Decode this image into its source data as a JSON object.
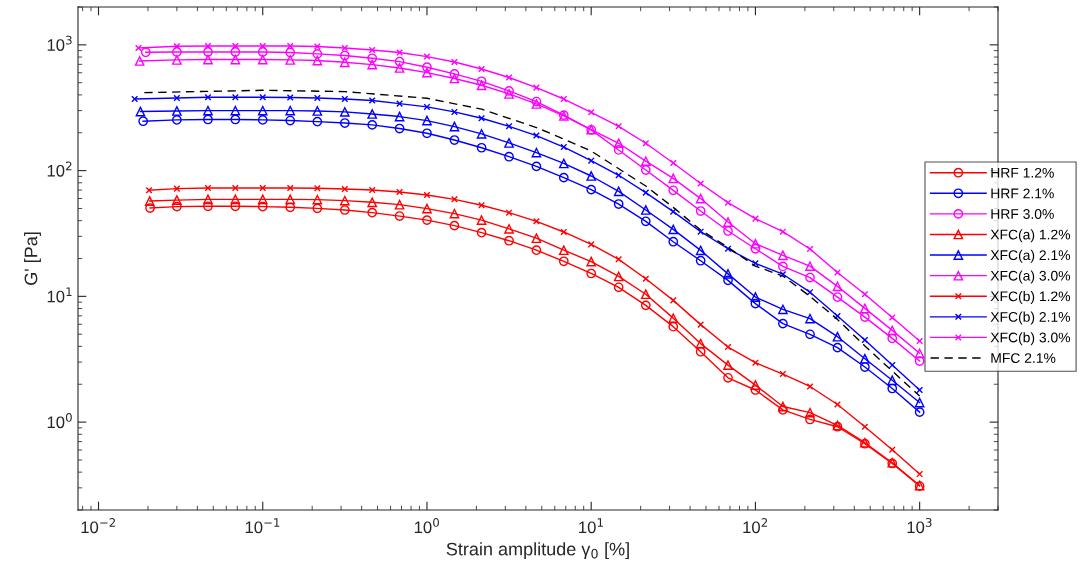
{
  "chart_data": {
    "type": "line",
    "xlabel": "Strain amplitude γ$_{0}$ [%]",
    "ylabel": "G' [Pa]",
    "log": "xy",
    "grid": false,
    "legend": "right",
    "xlim": [
      0.0075,
      3000
    ],
    "ylim": [
      0.2,
      2000
    ],
    "xticks": [
      {
        "value": 0.01,
        "label": "10$^{−2}$"
      },
      {
        "value": 0.1,
        "label": "10$^{−1}$"
      },
      {
        "value": 1,
        "label": "10$^{0}$"
      },
      {
        "value": 10,
        "label": "10$^{1}$"
      },
      {
        "value": 100,
        "label": "10$^{2}$"
      },
      {
        "value": 1000,
        "label": "10$^{3}$"
      }
    ],
    "yticks": [
      {
        "value": 1,
        "label": "10$^{0}$"
      },
      {
        "value": 10,
        "label": "10$^{1}$"
      },
      {
        "value": 100,
        "label": "10$^{2}$"
      },
      {
        "value": 1000,
        "label": "10$^{3}$"
      }
    ],
    "series": [
      {
        "name": "HRF 1.2%",
        "color": "#ff0000",
        "marker": "circle",
        "line_style": "solid",
        "x": [
          0.0206,
          0.03,
          0.0464,
          0.0681,
          0.1,
          0.147,
          0.215,
          0.316,
          0.464,
          0.681,
          1,
          1.47,
          2.15,
          3.16,
          4.64,
          6.81,
          10,
          14.7,
          21.5,
          31.6,
          46.4,
          68.1,
          100,
          147,
          215,
          316,
          464,
          681,
          1000
        ],
        "values": [
          50.4,
          51.7,
          52.0,
          52.0,
          51.7,
          51.1,
          50.1,
          48.6,
          46.3,
          43.5,
          40.4,
          36.5,
          32.1,
          27.7,
          23.3,
          19.0,
          15.2,
          11.8,
          8.48,
          5.74,
          3.63,
          2.25,
          1.8,
          1.25,
          1.05,
          0.919,
          0.673,
          0.469,
          0.31
        ]
      },
      {
        "name": "HRF 2.1%",
        "color": "#0000ff",
        "marker": "circle",
        "line_style": "solid",
        "x": [
          0.0187,
          0.03,
          0.0464,
          0.0681,
          0.1,
          0.147,
          0.215,
          0.316,
          0.464,
          0.681,
          1,
          1.47,
          2.15,
          3.16,
          4.64,
          6.81,
          10,
          14.7,
          21.5,
          31.6,
          46.4,
          68.1,
          100,
          147,
          215,
          316,
          464,
          681,
          1000
        ],
        "values": [
          247,
          253,
          255,
          255,
          253,
          250,
          245,
          239,
          231,
          216,
          198,
          175,
          152,
          129,
          108,
          87.9,
          70.6,
          54.2,
          39.5,
          27.2,
          19.2,
          13.4,
          8.75,
          6.07,
          4.99,
          3.91,
          2.74,
          1.85,
          1.2
        ]
      },
      {
        "name": "HRF 3.0%",
        "color": "#ff00ff",
        "marker": "circle",
        "line_style": "solid",
        "x": [
          0.0194,
          0.03,
          0.0464,
          0.0681,
          0.1,
          0.147,
          0.215,
          0.316,
          0.464,
          0.681,
          1,
          1.47,
          2.15,
          3.16,
          4.64,
          6.81,
          10,
          14.7,
          21.5,
          31.6,
          46.4,
          68.1,
          100,
          147,
          215,
          316,
          464,
          681,
          1000
        ],
        "values": [
          873,
          878,
          878,
          878,
          878,
          869,
          847,
          823,
          782,
          736,
          664,
          587,
          513,
          430,
          354,
          276,
          211,
          146,
          101,
          69.7,
          47.7,
          33.1,
          23.9,
          17.3,
          14.1,
          9.87,
          6.84,
          4.63,
          3.06
        ]
      },
      {
        "name": "XFC(a) 1.2%",
        "color": "#ff0000",
        "marker": "triangle",
        "line_style": "solid",
        "x": [
          0.0205,
          0.03,
          0.0464,
          0.0681,
          0.1,
          0.147,
          0.215,
          0.316,
          0.464,
          0.681,
          1,
          1.47,
          2.15,
          3.16,
          4.64,
          6.81,
          10,
          14.7,
          21.5,
          31.6,
          46.4,
          68.1,
          100,
          147,
          215,
          316,
          464,
          681,
          1000
        ],
        "values": [
          57.3,
          58.3,
          59.1,
          59.1,
          59.1,
          59.1,
          58.8,
          57.7,
          56.0,
          53.6,
          49.9,
          45.5,
          40.4,
          34.4,
          29.0,
          23.3,
          18.9,
          14.4,
          10.4,
          6.71,
          4.21,
          2.84,
          1.97,
          1.33,
          1.19,
          0.941,
          0.686,
          0.475,
          0.313
        ]
      },
      {
        "name": "XFC(a) 2.1%",
        "color": "#0000ff",
        "marker": "triangle",
        "line_style": "solid",
        "x": [
          0.018,
          0.03,
          0.0464,
          0.0681,
          0.1,
          0.147,
          0.215,
          0.316,
          0.464,
          0.681,
          1,
          1.47,
          2.15,
          3.16,
          4.64,
          6.81,
          10,
          14.7,
          21.5,
          31.6,
          46.4,
          68.1,
          100,
          147,
          215,
          316,
          464,
          681,
          1000
        ],
        "values": [
          295,
          298,
          300,
          300,
          300,
          300,
          298,
          293,
          282,
          269,
          250,
          224,
          196,
          166,
          139,
          114,
          90.6,
          68.4,
          48.6,
          34.1,
          23.2,
          15.1,
          9.87,
          7.88,
          6.65,
          4.78,
          3.19,
          2.15,
          1.43
        ]
      },
      {
        "name": "XFC(a) 3.0%",
        "color": "#ff00ff",
        "marker": "triangle",
        "line_style": "solid",
        "x": [
          0.0178,
          0.03,
          0.0464,
          0.0681,
          0.1,
          0.147,
          0.215,
          0.316,
          0.464,
          0.681,
          1,
          1.47,
          2.15,
          3.16,
          4.64,
          6.81,
          10,
          14.7,
          21.5,
          31.6,
          46.4,
          68.1,
          100,
          147,
          215,
          316,
          464,
          681,
          1000
        ],
        "values": [
          745,
          759,
          764,
          764,
          764,
          759,
          750,
          727,
          697,
          655,
          602,
          540,
          477,
          407,
          339,
          272,
          212,
          165,
          119,
          86.8,
          59.9,
          39.0,
          26.2,
          21.2,
          17.4,
          12.0,
          8.02,
          5.36,
          3.52
        ]
      },
      {
        "name": "XFC(b) 1.2%",
        "color": "#ff0000",
        "marker": "cross",
        "line_style": "solid",
        "x": [
          0.0203,
          0.03,
          0.0464,
          0.0681,
          0.1,
          0.147,
          0.215,
          0.316,
          0.464,
          0.681,
          1,
          1.47,
          2.15,
          3.16,
          4.64,
          6.81,
          10,
          14.7,
          21.5,
          31.6,
          46.4,
          68.1,
          100,
          147,
          215,
          316,
          464,
          681,
          1000
        ],
        "values": [
          69.7,
          71.9,
          72.7,
          72.7,
          72.7,
          72.7,
          72.3,
          71.4,
          70.1,
          67.6,
          64.0,
          59.1,
          53.0,
          46.3,
          39.5,
          32.5,
          25.9,
          19.7,
          13.8,
          9.29,
          5.96,
          3.95,
          2.97,
          2.41,
          1.92,
          1.38,
          0.919,
          0.603,
          0.386
        ]
      },
      {
        "name": "XFC(b) 2.1%",
        "color": "#0000ff",
        "marker": "cross",
        "line_style": "solid",
        "x": [
          0.0166,
          0.03,
          0.0464,
          0.0681,
          0.1,
          0.147,
          0.215,
          0.316,
          0.464,
          0.681,
          1,
          1.47,
          2.15,
          3.16,
          4.64,
          6.81,
          10,
          14.7,
          21.5,
          31.6,
          46.4,
          68.1,
          100,
          147,
          215,
          316,
          464,
          681,
          1000
        ],
        "values": [
          371,
          378,
          383,
          383,
          383,
          381,
          378,
          371,
          361,
          341,
          321,
          293,
          261,
          225,
          190,
          154,
          120,
          91.8,
          66.8,
          47.2,
          32.7,
          23.9,
          18.3,
          15.0,
          10.8,
          6.97,
          4.49,
          2.84,
          1.8
        ]
      },
      {
        "name": "XFC(b) 3.0%",
        "color": "#ff00ff",
        "marker": "cross",
        "line_style": "solid",
        "x": [
          0.0175,
          0.03,
          0.0464,
          0.0681,
          0.1,
          0.147,
          0.215,
          0.316,
          0.464,
          0.681,
          1,
          1.47,
          2.15,
          3.16,
          4.64,
          6.81,
          10,
          14.7,
          21.5,
          31.6,
          46.4,
          68.1,
          100,
          147,
          215,
          316,
          464,
          681,
          1000
        ],
        "values": [
          945,
          975,
          980,
          980,
          980,
          980,
          970,
          945,
          910,
          869,
          807,
          731,
          643,
          550,
          457,
          371,
          291,
          225,
          165,
          115,
          79,
          55.6,
          41.5,
          32.7,
          23.8,
          15.5,
          10.4,
          6.8,
          4.41
        ]
      },
      {
        "name": "MFC 2.1%",
        "color": "#000000",
        "marker": "none",
        "line_style": "dashed",
        "x": [
          0.019,
          0.1,
          0.316,
          1,
          2.15,
          4.64,
          6.81,
          10,
          21.5,
          31.6,
          46.4,
          68.1,
          100,
          147,
          215,
          316,
          464,
          681,
          1000
        ],
        "values": [
          417,
          435,
          425,
          376,
          308,
          220,
          178,
          143,
          75.4,
          51,
          33.7,
          24.5,
          17.4,
          14.5,
          10.0,
          6.56,
          4.03,
          2.55,
          1.61
        ]
      }
    ]
  }
}
